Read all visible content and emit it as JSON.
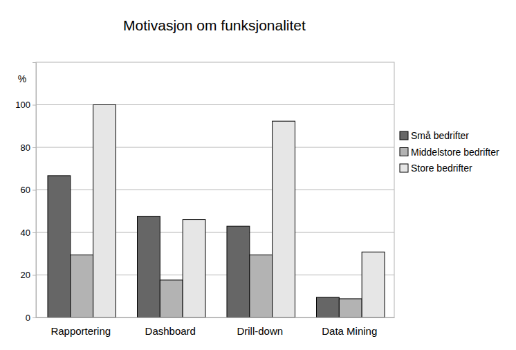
{
  "chart_data": {
    "type": "bar",
    "title": "Motivasjon om funksjonalitet",
    "y_label": "%",
    "categories": [
      "Rapportering",
      "Dashboard",
      "Drill-down",
      "Data Mining"
    ],
    "series": [
      {
        "name": "Små bedrifter",
        "color": "#666666",
        "values": [
          66.7,
          47.6,
          42.9,
          9.5
        ]
      },
      {
        "name": "Middelstore bedrifter",
        "color": "#b3b3b3",
        "values": [
          29.4,
          17.6,
          29.4,
          8.8
        ]
      },
      {
        "name": "Store bedrifter",
        "color": "#e6e6e6",
        "values": [
          100,
          46,
          92.3,
          30.8
        ]
      }
    ],
    "ylim": [
      0,
      120
    ],
    "yticks": [
      0,
      20,
      40,
      60,
      80,
      100
    ],
    "grid": true,
    "legend": "right"
  }
}
